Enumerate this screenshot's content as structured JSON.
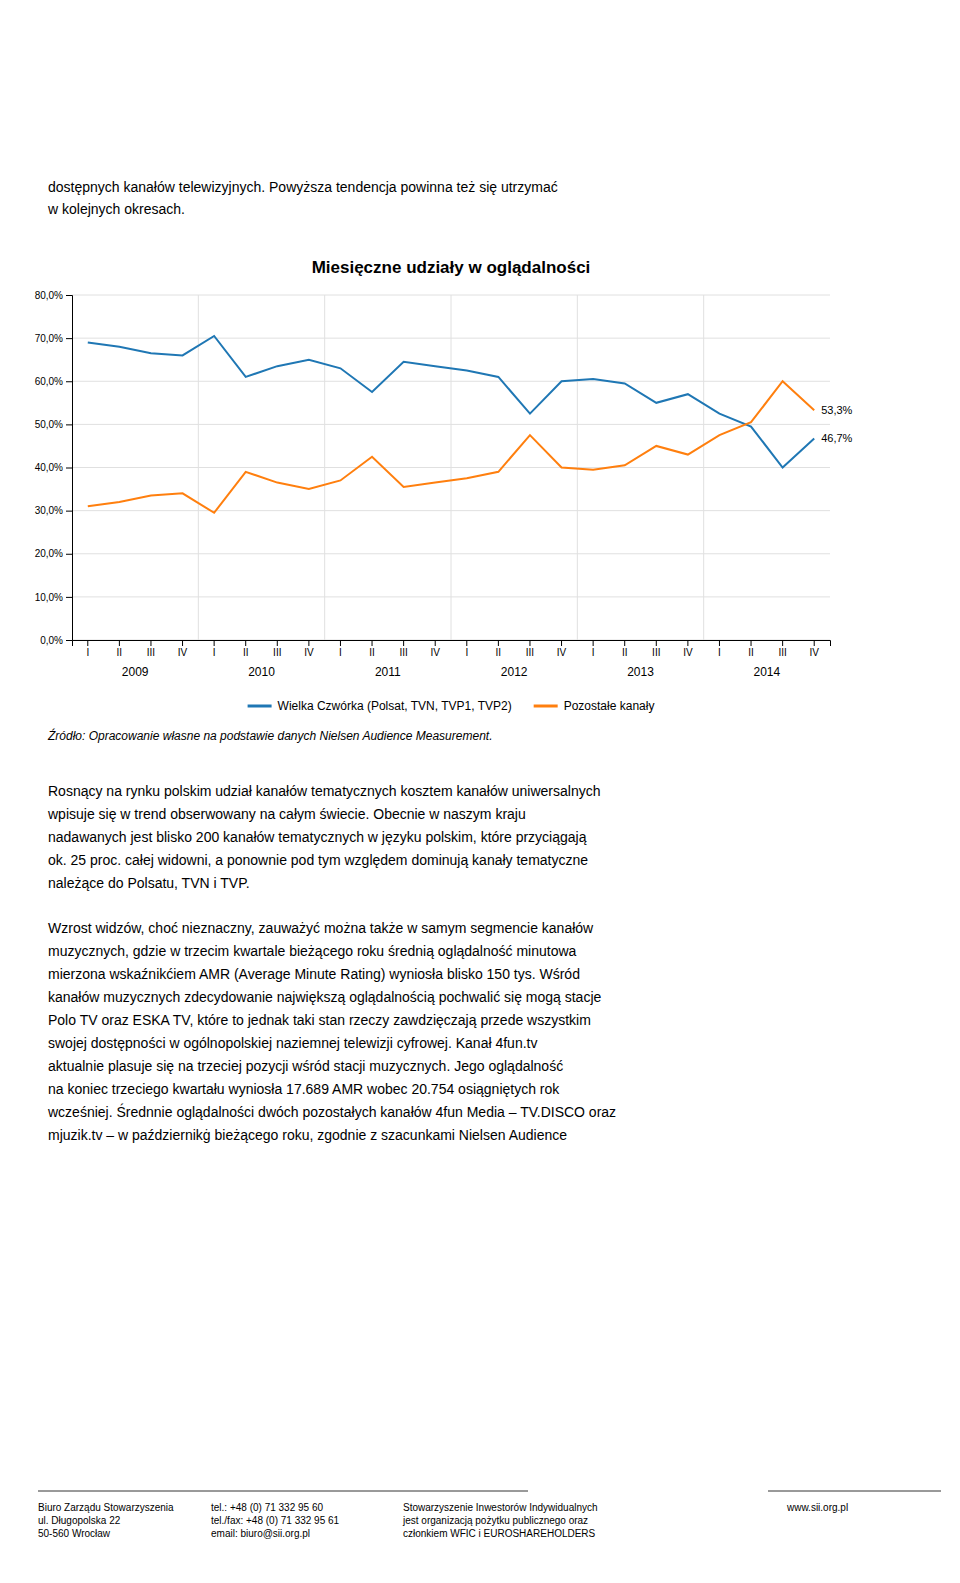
{
  "chart_data": {
    "type": "line",
    "title": "Miesięczne udziały w oglądalności",
    "categories": [
      "I",
      "II",
      "III",
      "IV",
      "I",
      "II",
      "III",
      "IV",
      "I",
      "II",
      "III",
      "IV",
      "I",
      "II",
      "III",
      "IV",
      "I",
      "II",
      "III",
      "IV",
      "I",
      "II",
      "III",
      "IV"
    ],
    "years": [
      "2009",
      "2010",
      "2011",
      "2012",
      "2013",
      "2014"
    ],
    "series": [
      {
        "name": "Wielka Czwórka (Polsat, TVN, TVP1, TVP2)",
        "values": [
          69.0,
          68.0,
          66.5,
          66.0,
          70.5,
          61.0,
          63.5,
          65.0,
          63.0,
          57.5,
          64.5,
          63.5,
          62.5,
          61.0,
          52.5,
          60.0,
          60.5,
          59.5,
          55.0,
          57.0,
          52.5,
          49.5,
          40.0,
          46.7
        ]
      },
      {
        "name": "Pozostałe kanały",
        "values": [
          31.0,
          32.0,
          33.5,
          34.0,
          29.5,
          39.0,
          36.5,
          35.0,
          37.0,
          42.5,
          35.5,
          36.5,
          37.5,
          39.0,
          47.5,
          40.0,
          39.5,
          40.5,
          45.0,
          43.0,
          47.5,
          50.5,
          60.0,
          53.3
        ]
      }
    ],
    "annotations": [
      {
        "text": "53,3%",
        "value": 53.3
      },
      {
        "text": "46,7%",
        "value": 46.7
      }
    ],
    "ylim": [
      0,
      80
    ],
    "yticks": [
      {
        "value": 0,
        "label": "0,0%"
      },
      {
        "value": 10,
        "label": "10,0%"
      },
      {
        "value": 20,
        "label": "20,0%"
      },
      {
        "value": 30,
        "label": "30,0%"
      },
      {
        "value": 40,
        "label": "40,0%"
      },
      {
        "value": 50,
        "label": "50,0%"
      },
      {
        "value": 60,
        "label": "60,0%"
      },
      {
        "value": 70,
        "label": "70,0%"
      },
      {
        "value": 80,
        "label": "80,0%"
      }
    ],
    "grid": true,
    "legend": "bottom",
    "source": "Źródło: Opracowanie własne na podstawie danych Nielsen Audience Measurement."
  },
  "text_above": [
    "dostępnych kanałów telewizyjnych. Powyższa tendencja powinna też się utrzymać",
    "w kolejnych okresach."
  ],
  "paragraphs": [
    [
      "Rosnący na rynku polskim udział kanałów tematycznych kosztem kanałów uniwersalnych",
      "wpisuje się w trend obserwowany na całym świecie. Obecnie w naszym kraju",
      "nadawanych jest blisko 200 kanałów tematycznych w języku polskim, które przyciągają",
      "ok. 25 proc. całej widowni, a ponownie pod tym względem dominują kanały tematyczne",
      "należące do Polsatu, TVN i TVP."
    ],
    [
      "Wzrost widzów, choć nieznaczny, zauważyć można także w samym segmencie kanałów",
      "muzycznych, gdzie w trzecim kwartale bieżącego roku średnią oglądalność minutowa",
      "mierzona wskaźnikćiem AMR (Average Minute Rating) wyniosła blisko 150 tys. Wśród",
      "kanałów muzycznych zdecydowanie największą oglądalnością pochwalić się mogą stacje",
      "Polo TV oraz ESKA TV, które to jednak taki stan rzeczy zawdzięczają przede wszystkim",
      "swojej dostępności w ogólnopolskiej naziemnej telewizji cyfrowej. Kanał 4fun.tv",
      "aktualnie plasuje się na trzeciej pozycji wśród stacji muzycznych. Jego oglądalność",
      "na koniec trzeciego kwartału wyniosła 17.689 AMR wobec 20.754 osiągniętych rok",
      "wcześniej. Średnnie oglądalności dwóch pozostałych kanałów 4fun Media – TV.DISCO oraz",
      "mjuzik.tv – w październikġ bieżącego roku, zgodnie z szacunkami Nielsen Audience"
    ]
  ],
  "footer": [
    [
      "Biuro Zarządu Stowarzyszenia",
      "ul. Długopolska 22",
      "50-560 Wrocław"
    ],
    [
      "tel.: +48 (0) 71 332 95 60",
      "tel./fax: +48 (0) 71 332 95 61",
      "email: biuro@sii.org.pl"
    ],
    [
      "Stowarzyszenie Inwestorów Indywidualnych",
      "jest organizacją pożytku publicznego oraz",
      "członkiem WFIC i EUROSHAREHOLDERS"
    ],
    [
      "www.sii.org.pl"
    ]
  ]
}
